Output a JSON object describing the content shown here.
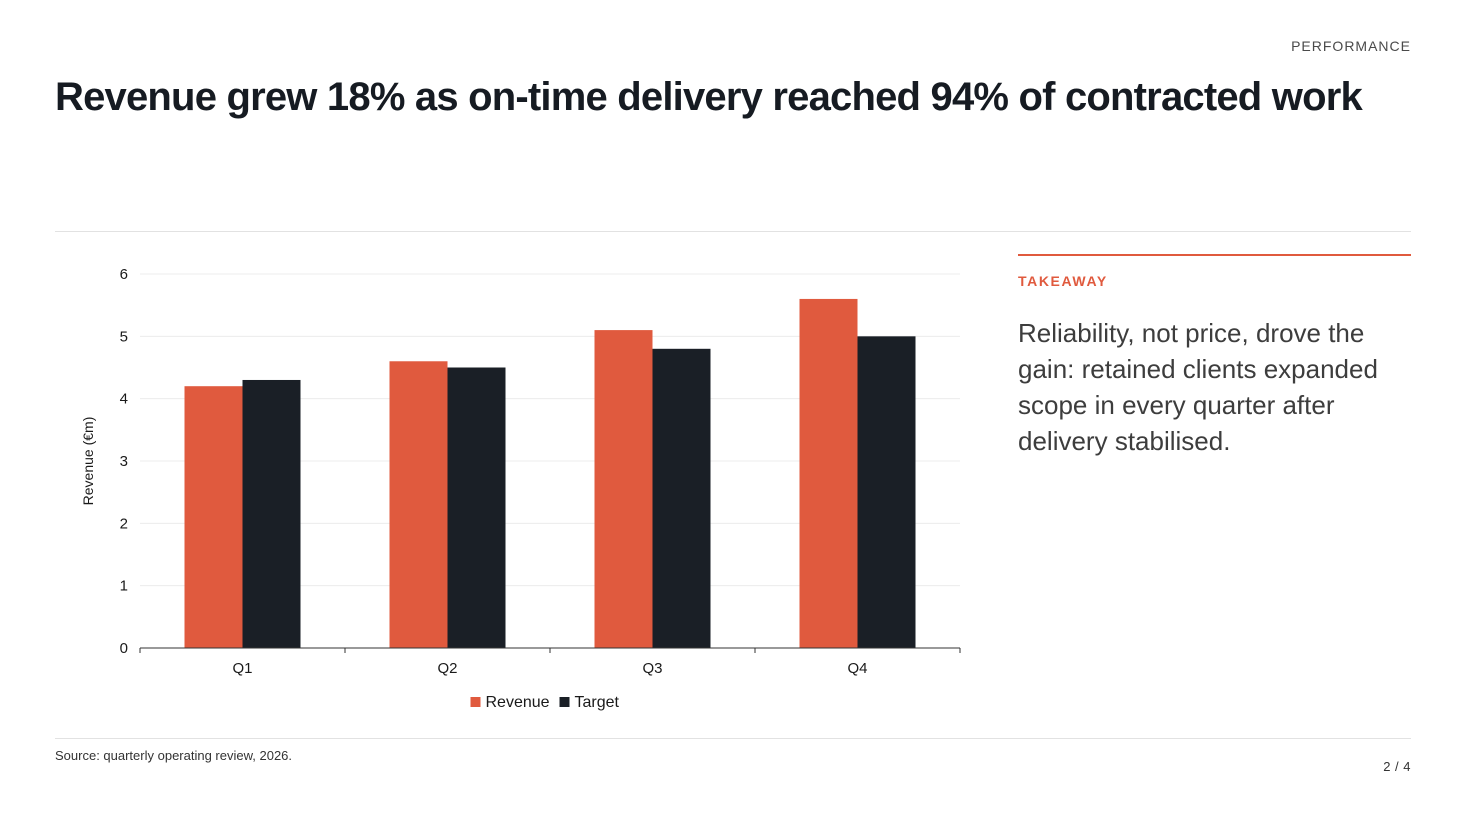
{
  "header": {
    "section": "PERFORMANCE",
    "title": "Revenue grew 18% as on-time delivery reached 94% of contracted work"
  },
  "takeaway": {
    "label": "TAKEAWAY",
    "text": "Reliability, not price, drove the gain: retained clients expanded scope in every quarter after delivery stabilised."
  },
  "footer": {
    "source": "Source: quarterly operating review, 2026.",
    "page": "2 / 4"
  },
  "colors": {
    "accent": "#e05a3e",
    "dark": "#1a1f26"
  },
  "chart_data": {
    "type": "bar",
    "title": "",
    "xlabel": "",
    "ylabel": "Revenue (€m)",
    "categories": [
      "Q1",
      "Q2",
      "Q3",
      "Q4"
    ],
    "series": [
      {
        "name": "Revenue",
        "values": [
          4.2,
          4.6,
          5.1,
          5.6
        ],
        "color": "#e05a3e"
      },
      {
        "name": "Target",
        "values": [
          4.3,
          4.5,
          4.8,
          5.0
        ],
        "color": "#1a1f26"
      }
    ],
    "ylim": [
      0,
      6
    ],
    "yticks": [
      0,
      1,
      2,
      3,
      4,
      5,
      6
    ],
    "grid": true,
    "legend": "bottom-center"
  }
}
